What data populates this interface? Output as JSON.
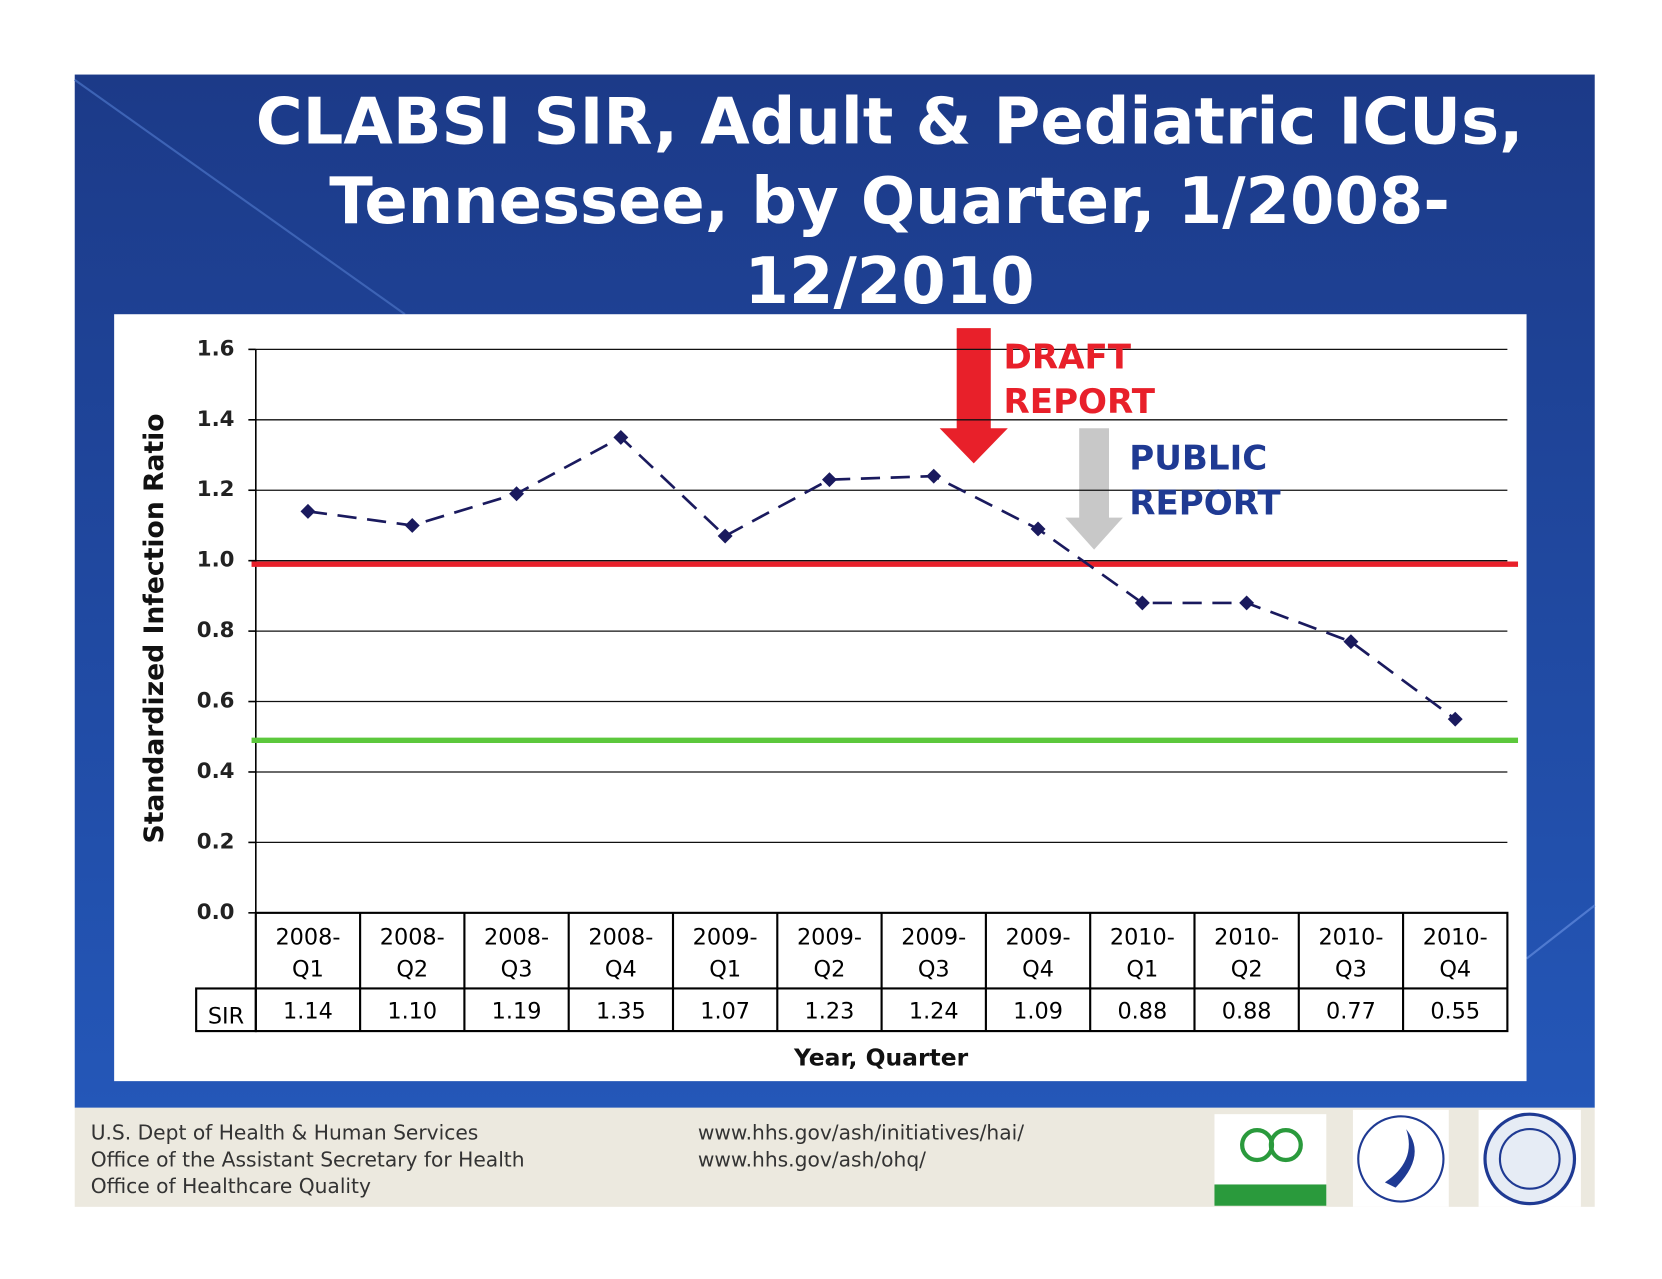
{
  "chart_data": {
    "type": "line",
    "title": [
      "CLABSI SIR, Adult & Pediatric ICUs,",
      "Tennessee, by Quarter, 1/2008-",
      "12/2010"
    ],
    "categories": [
      "2008-Q1",
      "2008-Q2",
      "2008-Q3",
      "2008-Q4",
      "2009-Q1",
      "2009-Q2",
      "2009-Q3",
      "2009-Q4",
      "2010-Q1",
      "2010-Q2",
      "2010-Q3",
      "2010-Q4"
    ],
    "series": [
      {
        "name": "SIR",
        "color": "#1a1a5e",
        "values": [
          1.14,
          1.1,
          1.19,
          1.35,
          1.07,
          1.23,
          1.24,
          1.09,
          0.88,
          0.88,
          0.77,
          0.55
        ],
        "value_labels": [
          "1.14",
          "1.10",
          "1.19",
          "1.35",
          "1.07",
          "1.23",
          "1.24",
          "1.09",
          "0.88",
          "0.88",
          "0.77",
          "0.55"
        ]
      }
    ],
    "ylim": [
      0,
      1.6
    ],
    "yticks": [
      {
        "value": 0,
        "label": "0.0"
      },
      0.2,
      0.4,
      0.6,
      0.8,
      {
        "value": 1,
        "label": "1.0"
      },
      1.2,
      1.4,
      1.6
    ],
    "grid": true,
    "y_label": "Standardized Infection Ratio",
    "x_label": "Year, Quarter",
    "reference_lines": [
      {
        "value": 0.99,
        "color": "#e8202a"
      },
      {
        "value": 0.49,
        "color": "#5cc83c"
      }
    ],
    "annotations": [
      {
        "lines": [
          "DRAFT",
          "REPORT"
        ],
        "color": "#e8202a"
      },
      {
        "lines": [
          "PUBLIC",
          "REPORT"
        ],
        "color": "#1f3a93"
      }
    ]
  },
  "footer": {
    "org": [
      "U.S. Dept of Health & Human Services",
      "Office of the Assistant Secretary for Health",
      "Office of Healthcare Quality"
    ],
    "links": [
      "www.hhs.gov/ash/initiatives/hai/",
      "www.hhs.gov/ash/ohq/"
    ]
  }
}
